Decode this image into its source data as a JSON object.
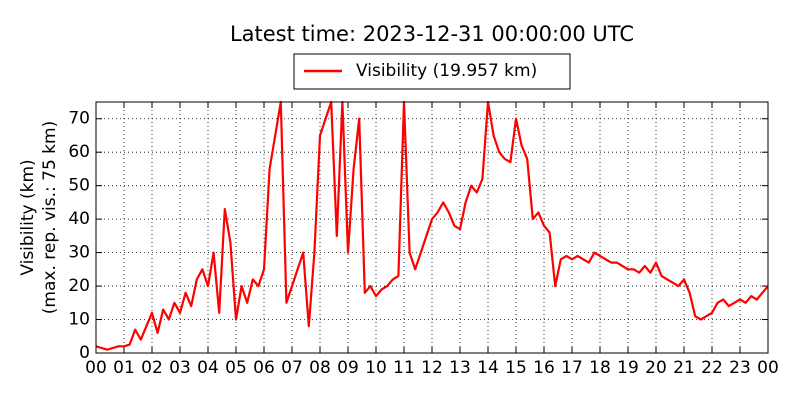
{
  "chart_data": {
    "type": "line",
    "title": "Latest time: 2023-12-31 00:00:00 UTC",
    "ylabel": [
      "Visibility (km)",
      "(max. rep. vis.: 75 km)"
    ],
    "x": [
      0,
      0.2,
      0.4,
      0.6,
      0.8,
      1,
      1.2,
      1.4,
      1.6,
      1.8,
      2,
      2.2,
      2.4,
      2.6,
      2.8,
      3,
      3.2,
      3.4,
      3.6,
      3.8,
      4,
      4.2,
      4.4,
      4.6,
      4.8,
      5,
      5.2,
      5.4,
      5.6,
      5.8,
      6,
      6.2,
      6.4,
      6.6,
      6.8,
      7,
      7.2,
      7.4,
      7.6,
      7.8,
      8,
      8.2,
      8.4,
      8.6,
      8.8,
      9,
      9.2,
      9.4,
      9.6,
      9.8,
      10,
      10.2,
      10.4,
      10.6,
      10.8,
      11,
      11.2,
      11.4,
      11.6,
      11.8,
      12,
      12.2,
      12.4,
      12.6,
      12.8,
      13,
      13.2,
      13.4,
      13.6,
      13.8,
      14,
      14.2,
      14.4,
      14.6,
      14.8,
      15,
      15.2,
      15.4,
      15.6,
      15.8,
      16,
      16.2,
      16.4,
      16.6,
      16.8,
      17,
      17.2,
      17.4,
      17.6,
      17.8,
      18,
      18.2,
      18.4,
      18.6,
      18.8,
      19,
      19.2,
      19.4,
      19.6,
      19.8,
      20,
      20.2,
      20.4,
      20.6,
      20.8,
      21,
      21.2,
      21.4,
      21.6,
      21.8,
      22,
      22.2,
      22.4,
      22.6,
      22.8,
      23,
      23.2,
      23.4,
      23.6,
      23.8,
      24
    ],
    "series": [
      {
        "name": "Visibility (19.957 km)",
        "color": "#ff0000",
        "values": [
          2,
          1.5,
          1,
          1.5,
          2,
          2,
          2.5,
          7,
          4,
          8,
          12,
          6,
          13,
          10,
          15,
          12,
          18,
          14,
          22,
          25,
          20,
          30,
          12,
          43,
          33,
          10,
          20,
          15,
          22,
          20,
          25,
          55,
          65,
          75,
          15,
          20,
          25,
          30,
          8,
          30,
          65,
          70,
          75,
          35,
          75,
          30,
          55,
          70,
          18,
          20,
          17,
          19,
          20,
          22,
          23,
          75,
          30,
          25,
          30,
          35,
          40,
          42,
          45,
          42,
          38,
          37,
          45,
          50,
          48,
          52,
          75,
          65,
          60,
          58,
          57,
          70,
          62,
          58,
          40,
          42,
          38,
          36,
          20,
          28,
          29,
          28,
          29,
          28,
          27,
          30,
          29,
          28,
          27,
          27,
          26,
          25,
          25,
          24,
          26,
          24,
          27,
          23,
          22,
          21,
          20,
          22,
          18,
          11,
          10,
          11,
          12,
          15,
          16,
          14,
          15,
          16,
          15,
          17,
          16,
          18,
          20
        ]
      }
    ],
    "xlim": [
      0,
      24
    ],
    "xticks": [
      {
        "value": 0,
        "label": "00"
      },
      {
        "value": 1,
        "label": "01"
      },
      {
        "value": 2,
        "label": "02"
      },
      {
        "value": 3,
        "label": "03"
      },
      {
        "value": 4,
        "label": "04"
      },
      {
        "value": 5,
        "label": "05"
      },
      {
        "value": 6,
        "label": "06"
      },
      {
        "value": 7,
        "label": "07"
      },
      {
        "value": 8,
        "label": "08"
      },
      {
        "value": 9,
        "label": "09"
      },
      10,
      11,
      12,
      13,
      14,
      15,
      16,
      17,
      18,
      19,
      20,
      21,
      22,
      23,
      {
        "value": 24,
        "label": "00"
      }
    ],
    "ylim": [
      0,
      75
    ],
    "yticks": [
      0,
      10,
      20,
      30,
      40,
      50,
      60,
      70
    ],
    "grid": true,
    "legend": "top"
  }
}
